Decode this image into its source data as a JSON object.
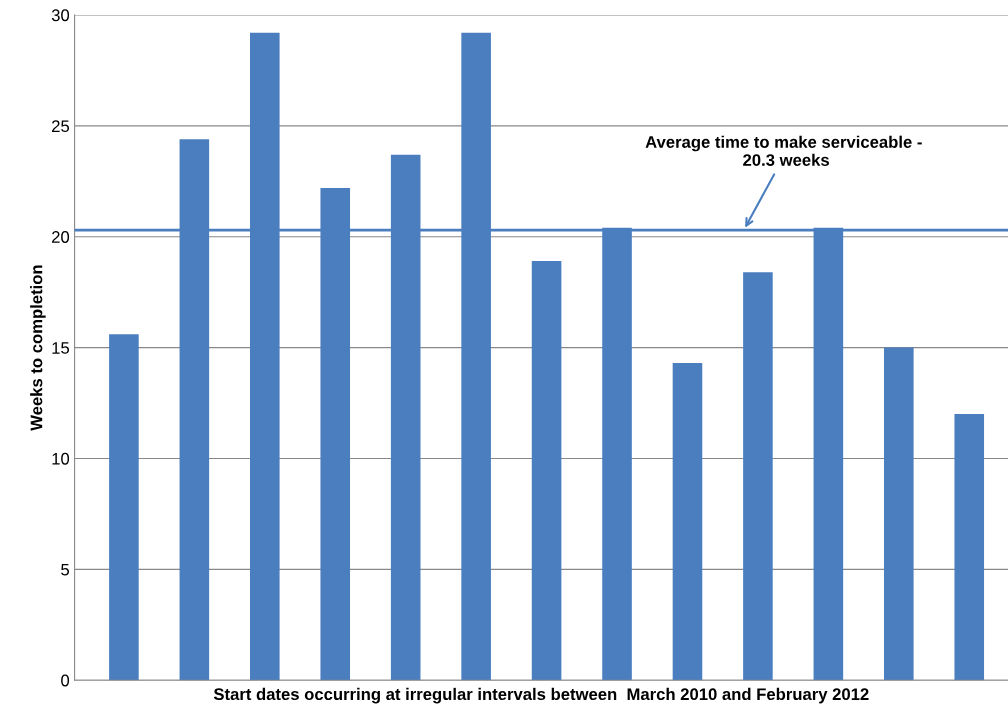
{
  "chart_data": {
    "type": "bar",
    "xlabel": "Start dates occurring at irregular intervals between  March 2010 and February 2012",
    "ylabel": "Weeks to completion",
    "categories": [
      null,
      null,
      null,
      null,
      null,
      null,
      null,
      null,
      null,
      null,
      null,
      null,
      null
    ],
    "values": [
      15.6,
      24.4,
      29.2,
      22.2,
      23.7,
      29.2,
      18.9,
      20.4,
      14.3,
      18.4,
      20.4,
      15.0,
      12.0
    ],
    "color": "#4a7ebf",
    "ylim": [
      0,
      30
    ],
    "yticks": [
      0,
      5,
      10,
      15,
      20,
      25,
      30
    ],
    "grid": "y",
    "ref_lines": [
      {
        "axis": "y",
        "value": 20.3,
        "label": "Average time to make serviceable - \n20.3 weeks",
        "color": "#4a7ebf"
      }
    ]
  }
}
